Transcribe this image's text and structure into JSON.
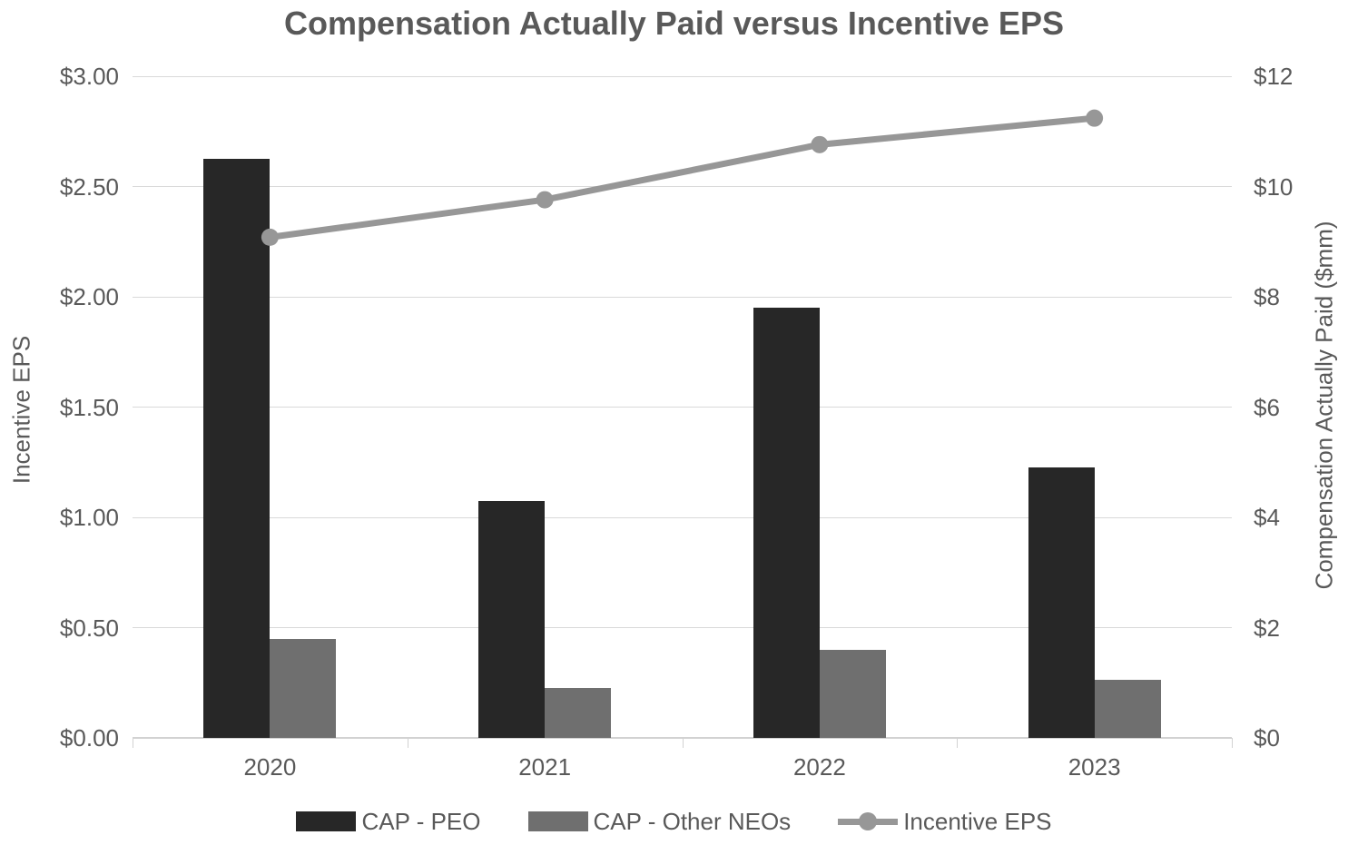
{
  "title": "Compensation Actually Paid versus Incentive EPS",
  "chart_data": {
    "type": "combo-bar-line",
    "categories": [
      "2020",
      "2021",
      "2022",
      "2023"
    ],
    "series": [
      {
        "name": "CAP - PEO",
        "type": "bar",
        "axis": "right",
        "color": "#272727",
        "values": [
          10.5,
          4.3,
          7.8,
          4.9
        ]
      },
      {
        "name": "CAP - Other NEOs",
        "type": "bar",
        "axis": "right",
        "color": "#6f6f6f",
        "values": [
          1.8,
          0.9,
          1.6,
          1.05
        ]
      },
      {
        "name": "Incentive EPS",
        "type": "line",
        "axis": "left",
        "color": "#979797",
        "values": [
          2.27,
          2.44,
          2.69,
          2.81
        ]
      }
    ],
    "left_axis": {
      "title": "Incentive EPS",
      "min": 0,
      "max": 3,
      "tick_labels": [
        "$3.00",
        "$2.50",
        "$2.00",
        "$1.50",
        "$1.00",
        "$0.50",
        "$0.00"
      ]
    },
    "right_axis": {
      "title": "Compensation Actually Paid ($mm)",
      "min": 0,
      "max": 12,
      "tick_labels": [
        "$12",
        "$10",
        "$8",
        "$6",
        "$4",
        "$2",
        "$0"
      ]
    },
    "grid": true,
    "legend_position": "bottom",
    "colors": {
      "gridline": "#d9d9d9",
      "axis_line": "#d2d2d2",
      "text": "#595959"
    }
  }
}
